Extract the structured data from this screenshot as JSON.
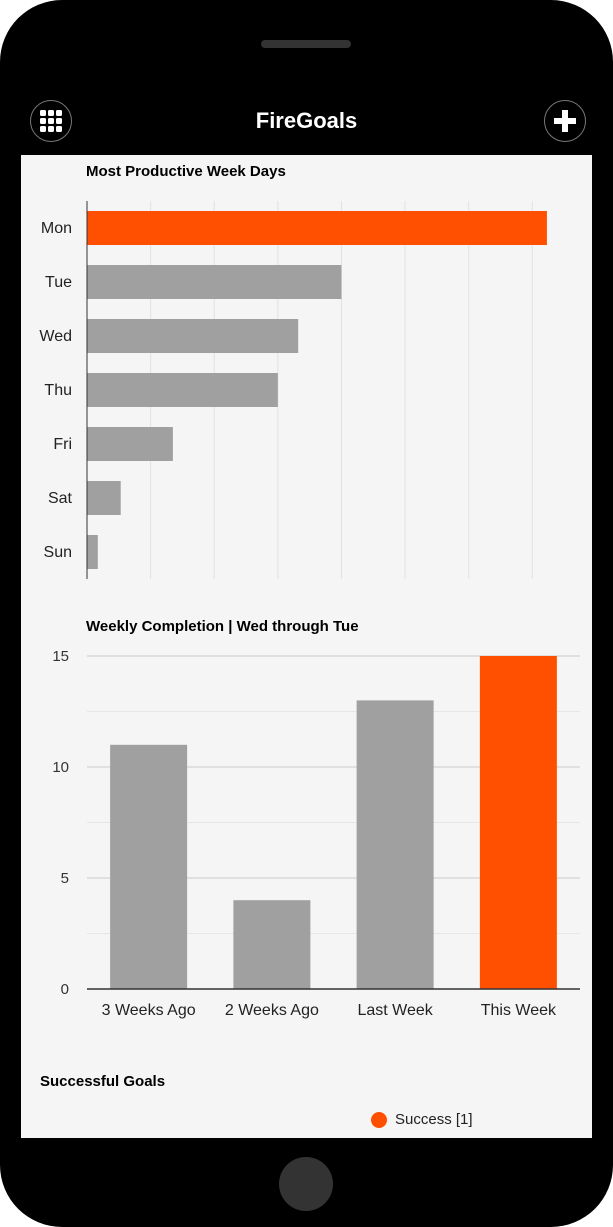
{
  "app": {
    "title": "FireGoals",
    "left_icon": "grid-menu-icon",
    "right_icon": "plus-icon"
  },
  "colors": {
    "accent": "#ff4f00",
    "bar": "#a0a0a0",
    "background": "#f5f5f5"
  },
  "chart_data": [
    {
      "type": "bar",
      "orientation": "horizontal",
      "title": "Most Productive Week Days",
      "categories": [
        "Mon",
        "Tue",
        "Wed",
        "Thu",
        "Fri",
        "Sat",
        "Sun"
      ],
      "values": [
        7.23,
        4.0,
        3.32,
        3.0,
        1.35,
        0.53,
        0.17
      ],
      "highlight": "Mon",
      "xlim": [
        0,
        7.75
      ],
      "grid": true
    },
    {
      "type": "bar",
      "title": "Weekly Completion | Wed through Tue",
      "categories": [
        "3 Weeks Ago",
        "2 Weeks Ago",
        "Last Week",
        "This Week"
      ],
      "values": [
        11,
        4,
        13,
        15
      ],
      "highlight": "This Week",
      "ylim": [
        0,
        15
      ],
      "yticks": [
        0,
        5,
        10,
        15
      ],
      "grid": true
    }
  ],
  "successful_goals": {
    "title": "Successful Goals",
    "legend": [
      {
        "label": "Success [1]",
        "color": "#ff4f00"
      }
    ]
  }
}
